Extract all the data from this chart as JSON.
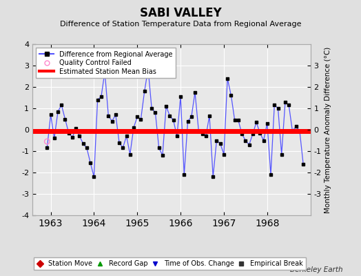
{
  "title": "SABI VALLEY",
  "subtitle": "Difference of Station Temperature Data from Regional Average",
  "ylabel_right": "Monthly Temperature Anomaly Difference (°C)",
  "credit": "Berkeley Earth",
  "ylim": [
    -4,
    4
  ],
  "yticks_left": [
    -4,
    -3,
    -2,
    -1,
    0,
    1,
    2,
    3,
    4
  ],
  "yticks_right": [
    -3,
    -2,
    -1,
    0,
    1,
    2,
    3
  ],
  "xlim_start": 1962.58,
  "xlim_end": 1969.0,
  "line_color": "#5555ff",
  "marker_color": "#000000",
  "bias_color": "#ff0000",
  "bias_value": -0.05,
  "qc_fail_x": [
    1962.917
  ],
  "qc_fail_y": [
    -0.55
  ],
  "background_color": "#e0e0e0",
  "plot_bg_color": "#e8e8e8",
  "grid_color": "#ffffff",
  "monthly_data": [
    [
      1962.917,
      -0.85
    ],
    [
      1963.0,
      0.7
    ],
    [
      1963.083,
      -0.4
    ],
    [
      1963.167,
      0.85
    ],
    [
      1963.25,
      1.15
    ],
    [
      1963.333,
      0.5
    ],
    [
      1963.417,
      -0.15
    ],
    [
      1963.5,
      -0.35
    ],
    [
      1963.583,
      0.05
    ],
    [
      1963.667,
      -0.3
    ],
    [
      1963.75,
      -0.65
    ],
    [
      1963.833,
      -0.85
    ],
    [
      1963.917,
      -1.55
    ],
    [
      1964.0,
      -2.2
    ],
    [
      1964.083,
      1.4
    ],
    [
      1964.167,
      1.55
    ],
    [
      1964.25,
      2.7
    ],
    [
      1964.333,
      0.65
    ],
    [
      1964.417,
      0.4
    ],
    [
      1964.5,
      0.7
    ],
    [
      1964.583,
      -0.6
    ],
    [
      1964.667,
      -0.85
    ],
    [
      1964.75,
      -0.3
    ],
    [
      1964.833,
      -1.15
    ],
    [
      1964.917,
      0.1
    ],
    [
      1965.0,
      0.6
    ],
    [
      1965.083,
      0.5
    ],
    [
      1965.167,
      1.8
    ],
    [
      1965.25,
      2.85
    ],
    [
      1965.333,
      1.0
    ],
    [
      1965.417,
      0.8
    ],
    [
      1965.5,
      -0.85
    ],
    [
      1965.583,
      -1.2
    ],
    [
      1965.667,
      1.1
    ],
    [
      1965.75,
      0.65
    ],
    [
      1965.833,
      0.45
    ],
    [
      1965.917,
      -0.3
    ],
    [
      1966.0,
      1.55
    ],
    [
      1966.083,
      -2.1
    ],
    [
      1966.167,
      0.4
    ],
    [
      1966.25,
      0.6
    ],
    [
      1966.333,
      1.75
    ],
    [
      1966.417,
      -0.05
    ],
    [
      1966.5,
      -0.2
    ],
    [
      1966.583,
      -0.3
    ],
    [
      1966.667,
      0.65
    ],
    [
      1966.75,
      -2.2
    ],
    [
      1966.833,
      -0.5
    ],
    [
      1966.917,
      -0.65
    ],
    [
      1967.0,
      -1.15
    ],
    [
      1967.083,
      2.4
    ],
    [
      1967.167,
      1.6
    ],
    [
      1967.25,
      0.45
    ],
    [
      1967.333,
      0.45
    ],
    [
      1967.417,
      -0.2
    ],
    [
      1967.5,
      -0.5
    ],
    [
      1967.583,
      -0.7
    ],
    [
      1967.667,
      -0.2
    ],
    [
      1967.75,
      0.35
    ],
    [
      1967.833,
      -0.15
    ],
    [
      1967.917,
      -0.5
    ],
    [
      1968.0,
      0.3
    ],
    [
      1968.083,
      -2.1
    ],
    [
      1968.167,
      1.15
    ],
    [
      1968.25,
      1.0
    ],
    [
      1968.333,
      -1.15
    ],
    [
      1968.417,
      1.3
    ],
    [
      1968.5,
      1.15
    ],
    [
      1968.583,
      -0.05
    ],
    [
      1968.667,
      0.15
    ],
    [
      1968.75,
      -0.05
    ],
    [
      1968.833,
      -1.6
    ]
  ]
}
